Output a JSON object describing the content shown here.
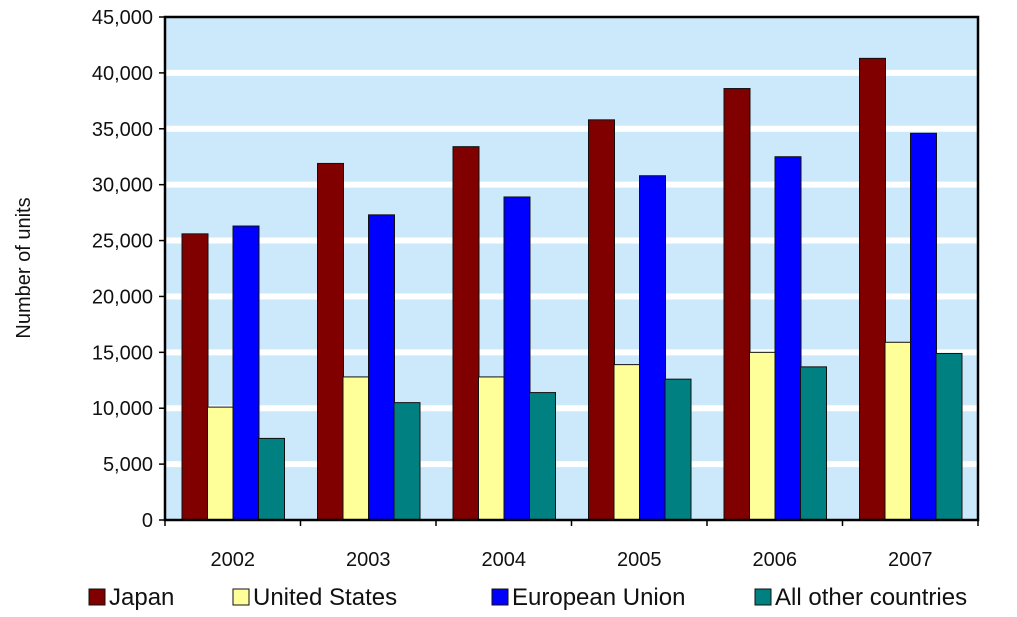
{
  "chart_data": {
    "type": "bar",
    "title": "",
    "xlabel": "",
    "ylabel": "Number of units",
    "ylim": [
      0,
      45000
    ],
    "yticks": [
      0,
      5000,
      10000,
      15000,
      20000,
      25000,
      30000,
      35000,
      40000,
      45000
    ],
    "ytick_labels": [
      "0",
      "5,000",
      "10,000",
      "15,000",
      "20,000",
      "25,000",
      "30,000",
      "35,000",
      "40,000",
      "45,000"
    ],
    "categories": [
      "2002",
      "2003",
      "2004",
      "2005",
      "2006",
      "2007"
    ],
    "series": [
      {
        "name": "Japan",
        "color": "#800000",
        "values": [
          25600,
          31900,
          33400,
          35800,
          38600,
          41300
        ]
      },
      {
        "name": "United States",
        "color": "#ffff99",
        "values": [
          10100,
          12800,
          12800,
          13900,
          15000,
          15900
        ]
      },
      {
        "name": "European Union",
        "color": "#0000ff",
        "values": [
          26300,
          27300,
          28900,
          30800,
          32500,
          34600
        ]
      },
      {
        "name": "All other countries",
        "color": "#008080",
        "values": [
          7300,
          10500,
          11400,
          12600,
          13700,
          14900
        ]
      }
    ],
    "plot_background": "#cce9fb",
    "gridline_color": "#ffffff",
    "grid": true,
    "legend_position": "bottom"
  }
}
